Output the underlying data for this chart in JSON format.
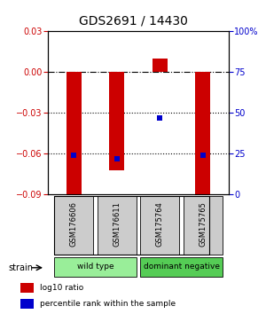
{
  "title": "GDS2691 / 14430",
  "samples": [
    "GSM176606",
    "GSM176611",
    "GSM175764",
    "GSM175765"
  ],
  "log10_ratio": [
    -0.092,
    -0.072,
    0.01,
    -0.092
  ],
  "percentile_rank": [
    24,
    22,
    47,
    24
  ],
  "ylim_left": [
    -0.09,
    0.03
  ],
  "ylim_right": [
    0,
    100
  ],
  "yticks_left": [
    -0.09,
    -0.06,
    -0.03,
    0,
    0.03
  ],
  "yticks_right": [
    0,
    25,
    50,
    75,
    100
  ],
  "ytick_labels_right": [
    "0",
    "25",
    "50",
    "75",
    "100%"
  ],
  "hlines_dotted": [
    -0.03,
    -0.06
  ],
  "hline_dashdot": 0.0,
  "groups": [
    {
      "label": "wild type",
      "samples": [
        0,
        1
      ],
      "color": "#99EE99"
    },
    {
      "label": "dominant negative",
      "samples": [
        2,
        3
      ],
      "color": "#55CC55"
    }
  ],
  "bar_color": "#CC0000",
  "blue_color": "#0000CC",
  "bar_width": 0.35,
  "legend_red_label": "log10 ratio",
  "legend_blue_label": "percentile rank within the sample",
  "strain_label": "strain",
  "left_tick_color": "#CC0000",
  "right_tick_color": "#0000CC",
  "sample_box_color": "#CCCCCC",
  "background_color": "#FFFFFF"
}
